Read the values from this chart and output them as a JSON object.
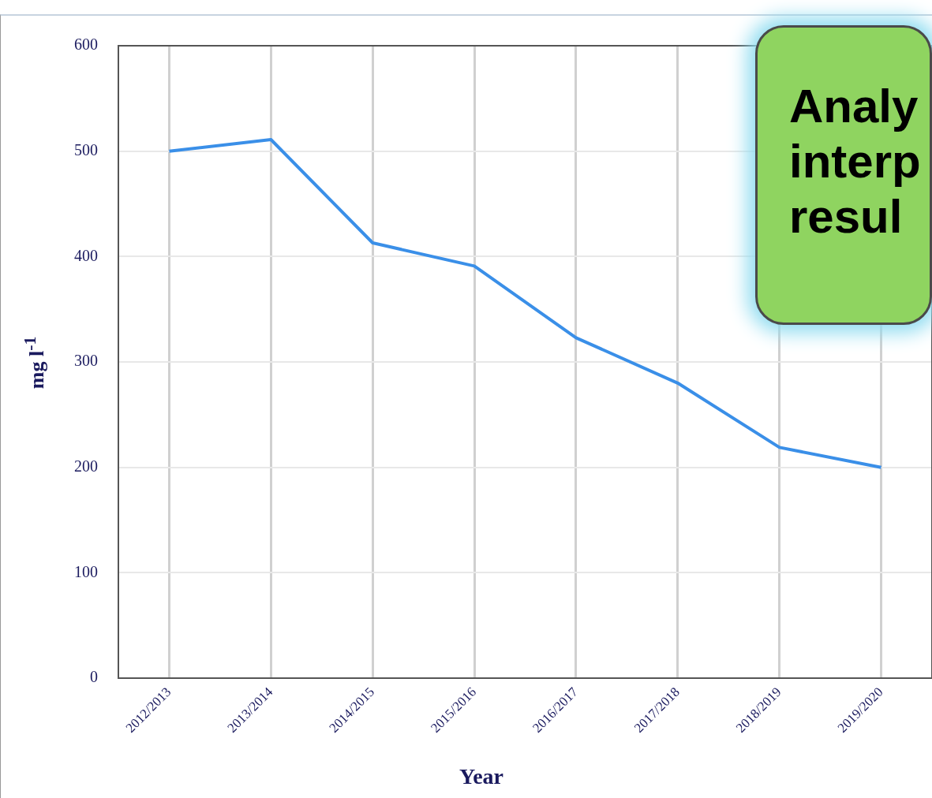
{
  "chart_data": {
    "type": "line",
    "xlabel": "Year",
    "ylabel": "mg l$^{-1}$",
    "categories": [
      "2012/2013",
      "2013/2014",
      "2014/2015",
      "2015/2016",
      "2016/2017",
      "2017/2018",
      "2018/2019",
      "2019/2020"
    ],
    "series": [
      {
        "color": "#3a8fe8",
        "values": [
          500,
          511,
          413,
          391,
          323,
          280,
          219,
          200
        ]
      }
    ],
    "ylim": [
      0,
      600
    ],
    "yticks": [
      0,
      100,
      200,
      300,
      400,
      500,
      600
    ],
    "grid": true,
    "legend": false,
    "marker": "none",
    "line_style": "solid",
    "annotations": [
      "Analy\ninterp\nresul"
    ]
  }
}
